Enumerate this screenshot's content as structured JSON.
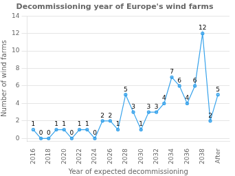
{
  "chart_data": {
    "type": "line",
    "title": "Decommissioning year of Europe's wind farms",
    "xlabel": "Year of expected decommissioning",
    "ylabel": "Number of wind farms",
    "x": [
      2016,
      2017,
      2018,
      2019,
      2020,
      2021,
      2022,
      2023,
      2024,
      2025,
      2026,
      2027,
      2028,
      2029,
      2030,
      2031,
      2032,
      2033,
      2034,
      2035,
      2036,
      2037,
      2038,
      2039,
      2040
    ],
    "values": [
      1,
      0,
      0,
      1,
      1,
      0,
      1,
      1,
      0,
      2,
      2,
      1,
      5,
      3,
      1,
      3,
      3,
      4,
      7,
      6,
      4,
      6,
      12,
      2,
      5
    ],
    "xlim": [
      2015.2,
      2041.5
    ],
    "xticks": [
      2016,
      2018,
      2020,
      2022,
      2024,
      2026,
      2028,
      2030,
      2032,
      2034,
      2036,
      2038,
      {
        "value": 2040,
        "label": "After"
      }
    ],
    "ylim": [
      -0.3,
      14
    ],
    "yticks": [
      0,
      2,
      4,
      6,
      8,
      10,
      12,
      14
    ],
    "grid": "y",
    "data_labels": true,
    "marker": "circle"
  }
}
